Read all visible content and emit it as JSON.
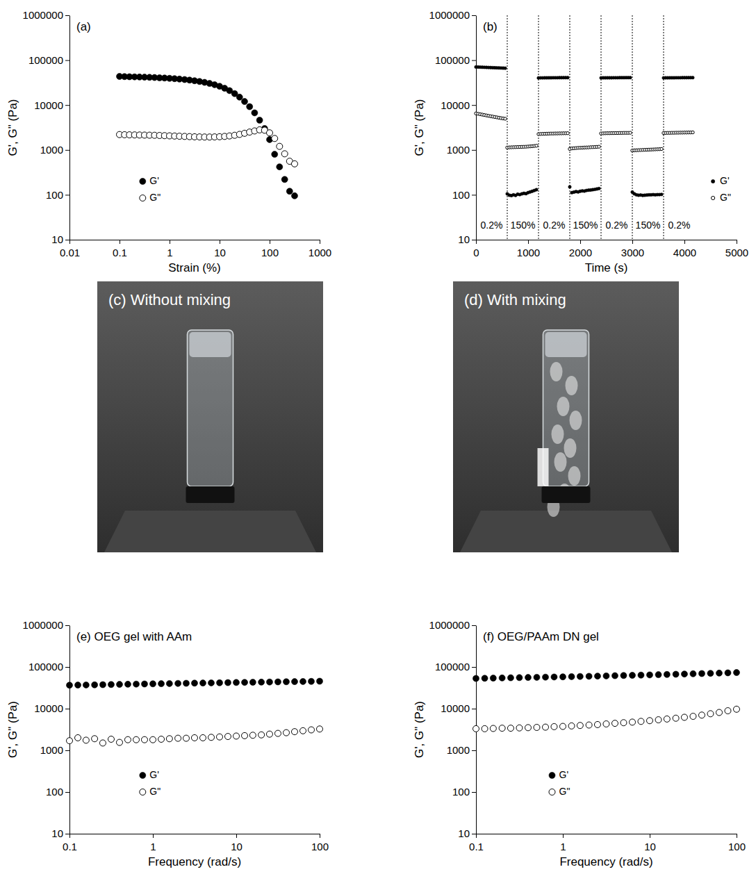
{
  "chart_data": [
    {
      "type": "scatter",
      "title": "(a)",
      "x_label": "Strain (%)",
      "y_label": "G', G\" (Pa)",
      "log": true,
      "xlim": [
        0.01,
        1000
      ],
      "xticks": [
        0.01,
        0.1,
        1,
        10,
        100,
        1000
      ],
      "ylim": [
        10,
        1000000
      ],
      "yticks": [
        10,
        100,
        1000,
        10000,
        100000,
        1000000
      ],
      "legend": "lower left",
      "x": [
        0.1,
        0.126,
        0.158,
        0.2,
        0.251,
        0.316,
        0.398,
        0.501,
        0.631,
        0.794,
        1,
        1.26,
        1.58,
        2,
        2.51,
        3.16,
        3.98,
        5.01,
        6.31,
        7.94,
        10,
        12.6,
        15.8,
        20,
        25.1,
        31.6,
        39.8,
        50.1,
        63.1,
        79.4,
        100,
        126,
        158,
        200,
        251,
        316
      ],
      "series": [
        {
          "name": "G'",
          "color": "#000000",
          "marker": "filled-circle",
          "values": [
            43500,
            43000,
            42700,
            42400,
            42100,
            41800,
            41400,
            41000,
            40500,
            40000,
            39400,
            38700,
            37900,
            37000,
            36000,
            34800,
            33500,
            32000,
            30300,
            28400,
            26200,
            23700,
            21000,
            18000,
            15000,
            12000,
            9200,
            6700,
            4600,
            3000,
            1700,
            800,
            420,
            220,
            120,
            95
          ]
        },
        {
          "name": "G\"",
          "color": "#000000",
          "marker": "open-circle",
          "values": [
            2200,
            2180,
            2170,
            2160,
            2150,
            2140,
            2130,
            2120,
            2100,
            2080,
            2060,
            2040,
            2020,
            2000,
            1980,
            1960,
            1950,
            1940,
            1940,
            1950,
            1970,
            2000,
            2050,
            2120,
            2220,
            2350,
            2500,
            2650,
            2800,
            2750,
            2400,
            1800,
            1200,
            820,
            560,
            490
          ]
        }
      ]
    },
    {
      "type": "scatter",
      "title": "(b)",
      "x_label": "Time (s)",
      "y_label": "G', G\" (Pa)",
      "log": "y",
      "xlim": [
        0,
        5000
      ],
      "xticks": [
        0,
        1000,
        2000,
        3000,
        4000,
        5000
      ],
      "ylim": [
        10,
        1000000
      ],
      "yticks": [
        10,
        100,
        1000,
        10000,
        100000,
        1000000
      ],
      "legend": "lower right",
      "annotations": [
        {
          "x_start": 0,
          "x_end": 600,
          "text": "0.2%"
        },
        {
          "x_start": 600,
          "x_end": 1200,
          "text": "150%"
        },
        {
          "x_start": 1200,
          "x_end": 1800,
          "text": "0.2%"
        },
        {
          "x_start": 1800,
          "x_end": 2400,
          "text": "150%"
        },
        {
          "x_start": 2400,
          "x_end": 3000,
          "text": "0.2%"
        },
        {
          "x_start": 3000,
          "x_end": 3600,
          "text": "150%"
        },
        {
          "x_start": 3600,
          "x_end": 4200,
          "text": "0.2%"
        }
      ],
      "x": [
        0,
        40,
        80,
        120,
        160,
        200,
        240,
        280,
        320,
        360,
        400,
        440,
        480,
        520,
        560,
        600,
        640,
        680,
        720,
        760,
        800,
        840,
        880,
        920,
        960,
        1000,
        1040,
        1080,
        1120,
        1160,
        1200,
        1240,
        1280,
        1320,
        1360,
        1400,
        1440,
        1480,
        1520,
        1560,
        1600,
        1640,
        1680,
        1720,
        1760,
        1800,
        1840,
        1880,
        1920,
        1960,
        2000,
        2040,
        2080,
        2120,
        2160,
        2200,
        2240,
        2280,
        2320,
        2360,
        2400,
        2440,
        2480,
        2520,
        2560,
        2600,
        2640,
        2680,
        2720,
        2760,
        2800,
        2840,
        2880,
        2920,
        2960,
        3000,
        3040,
        3080,
        3120,
        3160,
        3200,
        3240,
        3280,
        3320,
        3360,
        3400,
        3440,
        3480,
        3520,
        3560,
        3600,
        3640,
        3680,
        3720,
        3760,
        3800,
        3840,
        3880,
        3920,
        3960,
        4000,
        4040,
        4080,
        4120,
        4160
      ],
      "series": [
        {
          "name": "G'",
          "color": "#000000",
          "marker": "filled-circle",
          "values": [
            70500,
            70200,
            69900,
            69600,
            69300,
            69000,
            68700,
            68400,
            68100,
            67800,
            67500,
            67200,
            66900,
            66600,
            66300,
            105,
            98,
            96,
            100,
            97,
            103,
            101,
            105,
            108,
            106,
            112,
            116,
            120,
            125,
            130,
            40200,
            40300,
            40300,
            40400,
            40400,
            40500,
            40500,
            40600,
            40600,
            40600,
            40700,
            40700,
            40800,
            40800,
            40800,
            150,
            112,
            115,
            118,
            116,
            120,
            122,
            121,
            125,
            127,
            128,
            130,
            132,
            135,
            138,
            40300,
            40400,
            40400,
            40500,
            40500,
            40500,
            40600,
            40600,
            40600,
            40700,
            40700,
            40700,
            40800,
            40800,
            40800,
            115,
            105,
            100,
            98,
            99,
            97,
            98,
            99,
            100,
            100,
            101,
            100,
            101,
            101,
            102,
            40300,
            40400,
            40400,
            40500,
            40500,
            40500,
            40600,
            40600,
            40600,
            40700,
            40700,
            40700,
            40800,
            40800,
            40800
          ]
        },
        {
          "name": "G\"",
          "color": "#000000",
          "marker": "open-circle",
          "values": [
            6500,
            6380,
            6250,
            6120,
            5990,
            5870,
            5750,
            5640,
            5530,
            5420,
            5320,
            5220,
            5120,
            5030,
            4950,
            1130,
            1140,
            1145,
            1150,
            1155,
            1160,
            1165,
            1170,
            1175,
            1180,
            1190,
            1200,
            1210,
            1225,
            1240,
            2250,
            2270,
            2280,
            2290,
            2300,
            2310,
            2320,
            2320,
            2330,
            2330,
            2340,
            2340,
            2350,
            2350,
            2360,
            1050,
            1080,
            1090,
            1100,
            1110,
            1115,
            1120,
            1130,
            1135,
            1140,
            1150,
            1155,
            1160,
            1170,
            1180,
            2330,
            2340,
            2350,
            2360,
            2360,
            2370,
            2370,
            2380,
            2380,
            2390,
            2390,
            2400,
            2400,
            2400,
            2410,
            970,
            980,
            985,
            990,
            995,
            1000,
            1005,
            1010,
            1015,
            1020,
            1025,
            1030,
            1035,
            1040,
            1050,
            2380,
            2390,
            2400,
            2400,
            2410,
            2410,
            2420,
            2420,
            2430,
            2430,
            2440,
            2440,
            2450,
            2450,
            2460
          ]
        }
      ]
    },
    {
      "type": "scatter",
      "title": "(e) OEG gel with AAm",
      "x_label": "Frequency (rad/s)",
      "y_label": "G', G\" (Pa)",
      "log": true,
      "xlim": [
        0.1,
        100
      ],
      "xticks": [
        0.1,
        1,
        10,
        100
      ],
      "ylim": [
        10,
        1000000
      ],
      "yticks": [
        10,
        100,
        1000,
        10000,
        100000,
        1000000
      ],
      "legend": "lower left",
      "x": [
        0.1,
        0.126,
        0.158,
        0.2,
        0.251,
        0.316,
        0.398,
        0.501,
        0.631,
        0.794,
        1,
        1.26,
        1.58,
        2,
        2.51,
        3.16,
        3.98,
        5.01,
        6.31,
        7.94,
        10,
        12.6,
        15.8,
        20,
        25.1,
        31.6,
        39.8,
        50.1,
        63.1,
        79.4,
        100
      ],
      "series": [
        {
          "name": "G'",
          "color": "#000000",
          "marker": "filled-circle",
          "values": [
            36500,
            36800,
            37000,
            37300,
            37600,
            37900,
            38200,
            38500,
            38800,
            39100,
            39400,
            39700,
            40000,
            40300,
            40600,
            40900,
            41200,
            41500,
            41800,
            42100,
            42400,
            42700,
            43000,
            43300,
            43600,
            43900,
            44200,
            44500,
            44800,
            45100,
            45500
          ]
        },
        {
          "name": "G\"",
          "color": "#000000",
          "marker": "open-circle",
          "values": [
            1700,
            2000,
            1750,
            1900,
            1500,
            1850,
            1550,
            1800,
            1800,
            1800,
            1800,
            1850,
            1900,
            1950,
            1950,
            2000,
            2000,
            2050,
            2100,
            2150,
            2200,
            2250,
            2300,
            2350,
            2450,
            2550,
            2650,
            2800,
            2950,
            3100,
            3250
          ]
        }
      ]
    },
    {
      "type": "scatter",
      "title": "(f) OEG/PAAm DN gel",
      "x_label": "Frequency (rad/s)",
      "y_label": "G', G\" (Pa)",
      "log": true,
      "xlim": [
        0.1,
        100
      ],
      "xticks": [
        0.1,
        1,
        10,
        100
      ],
      "ylim": [
        10,
        1000000
      ],
      "yticks": [
        10,
        100,
        1000,
        10000,
        100000,
        1000000
      ],
      "legend": "lower left",
      "x": [
        0.1,
        0.126,
        0.158,
        0.2,
        0.251,
        0.316,
        0.398,
        0.501,
        0.631,
        0.794,
        1,
        1.26,
        1.58,
        2,
        2.51,
        3.16,
        3.98,
        5.01,
        6.31,
        7.94,
        10,
        12.6,
        15.8,
        20,
        25.1,
        31.6,
        39.8,
        50.1,
        63.1,
        79.4,
        100
      ],
      "series": [
        {
          "name": "G'",
          "color": "#000000",
          "marker": "filled-circle",
          "values": [
            53000,
            53500,
            54000,
            54500,
            55000,
            55500,
            56000,
            56500,
            57000,
            57500,
            58000,
            58600,
            59200,
            59800,
            60400,
            61000,
            61700,
            62400,
            63100,
            63800,
            64500,
            65300,
            66100,
            66900,
            67700,
            68600,
            69500,
            70400,
            71300,
            72300,
            73500
          ]
        },
        {
          "name": "G\"",
          "color": "#000000",
          "marker": "open-circle",
          "values": [
            3300,
            3300,
            3350,
            3400,
            3400,
            3450,
            3500,
            3550,
            3600,
            3700,
            3750,
            3850,
            3950,
            4050,
            4150,
            4300,
            4450,
            4600,
            4750,
            4950,
            5150,
            5400,
            5650,
            5900,
            6200,
            6550,
            7000,
            7550,
            8100,
            8900,
            9700
          ]
        }
      ]
    }
  ],
  "photos": [
    {
      "label": "(c) Without mixing"
    },
    {
      "label": "(d) With mixing"
    }
  ]
}
